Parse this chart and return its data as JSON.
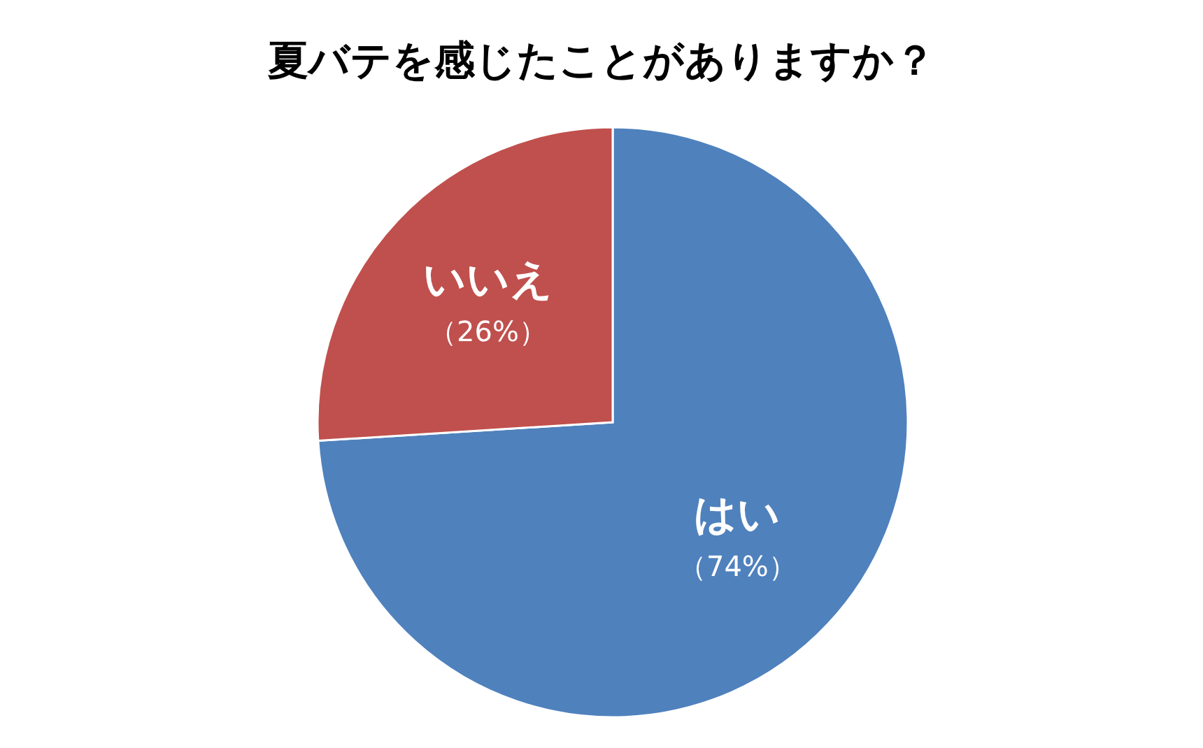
{
  "chart_data": {
    "type": "pie",
    "title": "夏バテを感じたことがありますか？",
    "categories": [
      "はい",
      "いいえ"
    ],
    "values": [
      74,
      26
    ],
    "colors": [
      "#4f81bd",
      "#c0504d"
    ],
    "value_labels": [
      "（74%）",
      "（26%）"
    ]
  }
}
